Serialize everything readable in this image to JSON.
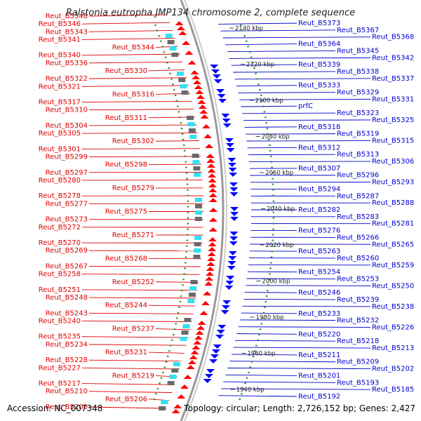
{
  "title": "Ralstonia eutropha JMP134 chromosome 2, complete sequence",
  "footer": {
    "accession": "Accession: NC_007348",
    "summary": "Topology: circular; Length: 2,726,152 bp; Genes: 2,427"
  },
  "colors": {
    "forward_label": "#e00000",
    "reverse_label": "#0000cc",
    "forward_arrow": "#ff0000",
    "reverse_arrow": "#0000ff",
    "backbone": "#999999",
    "gc_dots": "#2a8a2a"
  },
  "ruler_ticks": [
    "2140 kbp",
    "2120 kbp",
    "2100 kbp",
    "2080 kbp",
    "2060 kbp",
    "2040 kbp",
    "2020 kbp",
    "2000 kbp",
    "1980 kbp",
    "1960 kbp",
    "1940 kbp"
  ],
  "left_labels": [
    "Reut_B5348",
    "Reut_B5346",
    "Reut_B5343",
    "Reut_B5341",
    "Reut_B5344",
    "Reut_B5340",
    "Reut_B5336",
    "Reut_B5330",
    "Reut_B5322",
    "Reut_B5321",
    "Reut_B5316",
    "Reut_B5317",
    "Reut_B5310",
    "Reut_B5311",
    "Reut_B5304",
    "Reut_B5305",
    "Reut_B5302",
    "Reut_B5301",
    "Reut_B5299",
    "Reut_B5298",
    "Reut_B5297",
    "Reut_B5280",
    "Reut_B5279",
    "Reut_B5278",
    "Reut_B5277",
    "Reut_B5275",
    "Reut_B5273",
    "Reut_B5272",
    "Reut_B5271",
    "Reut_B5270",
    "Reut_B5269",
    "Reut_B5268",
    "Reut_B5267",
    "Reut_B5258",
    "Reut_B5252",
    "Reut_B5251",
    "Reut_B5248",
    "Reut_B5244",
    "Reut_B5243",
    "Reut_B5240",
    "Reut_B5237",
    "Reut_B5235",
    "Reut_B5234",
    "Reut_B5231",
    "Reut_B5228",
    "Reut_B5227",
    "Reut_B5219",
    "Reut_B5217",
    "Reut_B5210",
    "Reut_B5206",
    "Reut_B5200"
  ],
  "right_labels": [
    "Reut_B5373",
    "Reut_B5367",
    "Reut_B5368",
    "Reut_B5364",
    "Reut_B5345",
    "Reut_B5342",
    "Reut_B5339",
    "Reut_B5338",
    "Reut_B5337",
    "Reut_B5333",
    "Reut_B5329",
    "Reut_B5331",
    "prfC",
    "Reut_B5323",
    "Reut_B5325",
    "Reut_B5318",
    "Reut_B5319",
    "Reut_B5315",
    "Reut_B5312",
    "Reut_B5313",
    "Reut_B5306",
    "Reut_B5307",
    "Reut_B5296",
    "Reut_B5293",
    "Reut_B5294",
    "Reut_B5287",
    "Reut_B5288",
    "Reut_B5282",
    "Reut_B5283",
    "Reut_B5281",
    "Reut_B5276",
    "Reut_B5266",
    "Reut_B5265",
    "Reut_B5263",
    "Reut_B5260",
    "Reut_B5259",
    "Reut_B5254",
    "Reut_B5253",
    "Reut_B5250",
    "Reut_B5246",
    "Reut_B5239",
    "Reut_B5238",
    "Reut_B5233",
    "Reut_B5232",
    "Reut_B5226",
    "Reut_B5220",
    "Reut_B5218",
    "Reut_B5213",
    "Reut_B5211",
    "Reut_B5209",
    "Reut_B5202",
    "Reut_B5201",
    "Reut_B5193",
    "Reut_B5185",
    "Reut_B5192"
  ]
}
